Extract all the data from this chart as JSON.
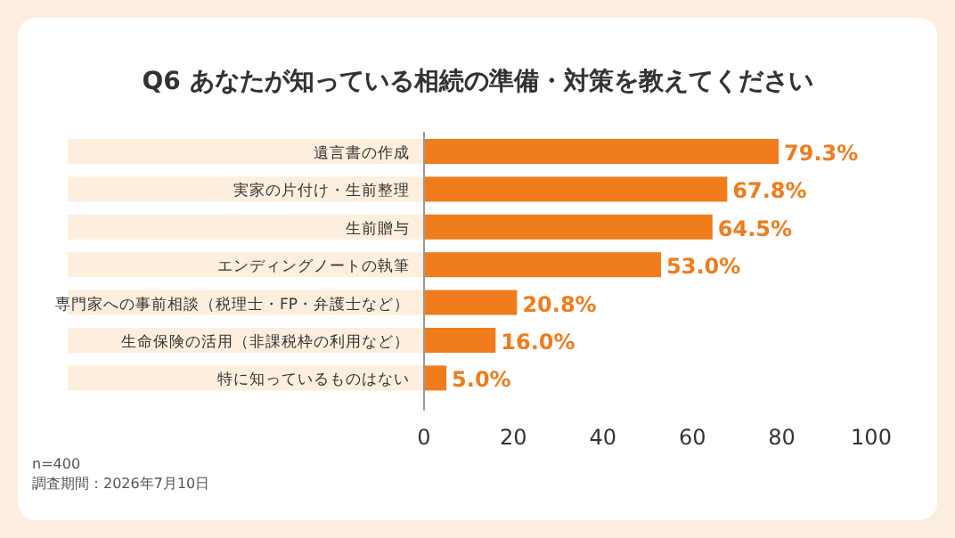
{
  "chart_data": {
    "type": "bar",
    "orientation": "horizontal",
    "title": "Q6 あなたが知っている相続の準備・対策を教えてください",
    "categories": [
      "遺言書の作成",
      "実家の片付け・生前整理",
      "生前贈与",
      "エンディングノートの執筆",
      "専門家への事前相談（税理士・FP・弁護士など）",
      "生命保険の活用（非課税枠の利用など）",
      "特に知っているものはない"
    ],
    "values": [
      79.3,
      67.8,
      64.5,
      53.0,
      20.8,
      16.0,
      5.0
    ],
    "value_labels": [
      "79.3%",
      "67.8%",
      "64.5%",
      "53.0%",
      "20.8%",
      "16.0%",
      "5.0%"
    ],
    "color": "#f07c1c",
    "xlim": [
      0,
      100
    ],
    "xticks": [
      0,
      20,
      40,
      60,
      80,
      100
    ],
    "grid": false,
    "annotations": [
      "n=400",
      "調査期間：2026年7月10日"
    ]
  }
}
